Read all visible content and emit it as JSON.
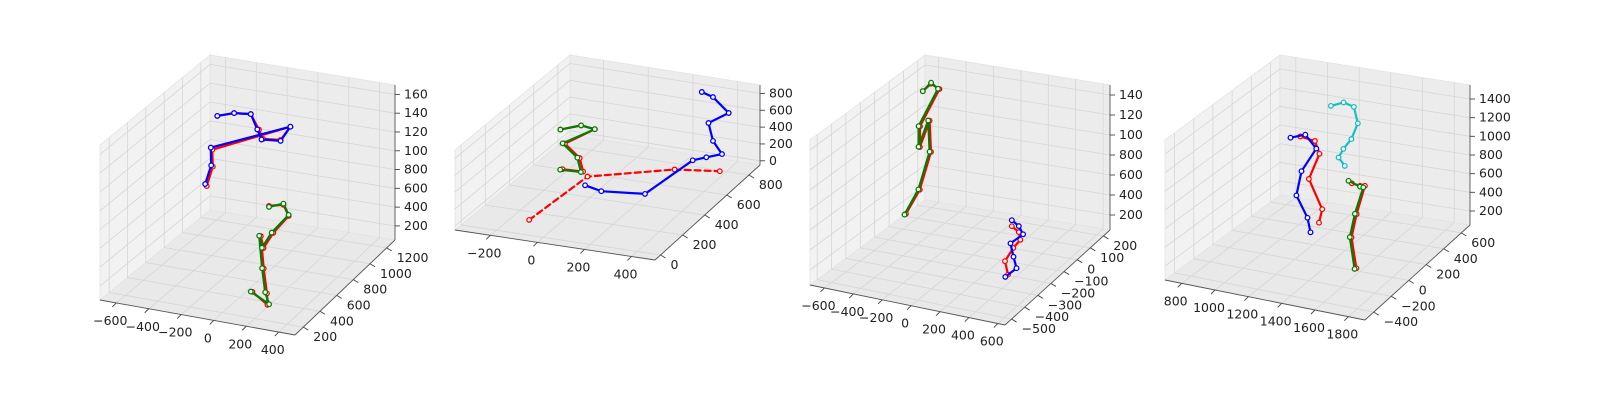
{
  "colors": {
    "red": "#ff0000",
    "blue": "#0000ff",
    "green": "#007f00",
    "cyan": "#19bfbf",
    "tick_text": "#222222"
  },
  "chart_data": [
    {
      "type": "scatter",
      "subtype": "3d-skeleton",
      "title": "",
      "xlabel": "",
      "ylabel": "",
      "zlabel": "",
      "x_ticks": [
        "−600",
        "−400",
        "−200",
        "0",
        "200",
        "400"
      ],
      "y_ticks": [
        "200",
        "400",
        "600",
        "800",
        "1000",
        "1200"
      ],
      "z_ticks": [
        "200",
        "400",
        "600",
        "800",
        "100",
        "120",
        "140",
        "160"
      ],
      "grid": true,
      "series": [
        {
          "color": "red",
          "style": "solid",
          "joint_color": "red",
          "points": [
            [
              -420,
              900,
              1450
            ],
            [
              -330,
              930,
              1480
            ],
            [
              -240,
              960,
              1470
            ],
            [
              -200,
              980,
              1300
            ],
            [
              -190,
              1010,
              1180
            ],
            [
              -100,
              1050,
              1160
            ],
            [
              -60,
              1090,
              1280
            ],
            [
              -440,
              880,
              1100
            ],
            [
              -420,
              850,
              950
            ],
            [
              -430,
              800,
              780
            ]
          ]
        },
        {
          "color": "blue",
          "style": "solid",
          "joint_color": "blue",
          "points": [
            [
              -420,
              900,
              1450
            ],
            [
              -330,
              930,
              1480
            ],
            [
              -240,
              960,
              1470
            ],
            [
              -210,
              980,
              1300
            ],
            [
              -200,
              1010,
              1170
            ],
            [
              -100,
              1050,
              1150
            ],
            [
              -60,
              1090,
              1280
            ],
            [
              -450,
              880,
              1120
            ],
            [
              -430,
              850,
              960
            ],
            [
              -440,
              800,
              800
            ]
          ]
        },
        {
          "color": "red",
          "style": "solid",
          "joint_color": "red",
          "points": [
            [
              20,
              700,
              780
            ],
            [
              100,
              720,
              800
            ],
            [
              150,
              690,
              720
            ],
            [
              80,
              640,
              560
            ],
            [
              40,
              600,
              420
            ],
            [
              120,
              420,
              720
            ],
            [
              160,
              380,
              420
            ],
            [
              190,
              360,
              180
            ],
            [
              210,
              330,
              90
            ],
            [
              100,
              360,
              170
            ]
          ]
        },
        {
          "color": "green",
          "style": "solid",
          "joint_color": "green",
          "points": [
            [
              20,
              700,
              770
            ],
            [
              100,
              720,
              810
            ],
            [
              150,
              690,
              730
            ],
            [
              70,
              640,
              560
            ],
            [
              30,
              600,
              420
            ],
            [
              110,
              420,
              720
            ],
            [
              150,
              380,
              420
            ],
            [
              180,
              360,
              190
            ],
            [
              220,
              330,
              100
            ],
            [
              90,
              360,
              170
            ]
          ]
        }
      ]
    },
    {
      "type": "scatter",
      "subtype": "3d-skeleton",
      "title": "",
      "xlabel": "",
      "ylabel": "",
      "zlabel": "",
      "x_ticks": [
        "−200",
        "0",
        "200",
        "400"
      ],
      "y_ticks": [
        "0",
        "200",
        "400",
        "600",
        "800"
      ],
      "z_ticks": [
        "0",
        "200",
        "400",
        "600",
        "800"
      ],
      "grid": true,
      "series": [
        {
          "color": "red",
          "style": "solid",
          "joint_color": "red",
          "points": [
            [
              -180,
              500,
              560
            ],
            [
              -100,
              520,
              620
            ],
            [
              -40,
              520,
              600
            ],
            [
              -150,
              480,
              430
            ],
            [
              -80,
              470,
              300
            ],
            [
              -60,
              460,
              160
            ],
            [
              -150,
              460,
              150
            ]
          ]
        },
        {
          "color": "green",
          "style": "solid",
          "joint_color": "green",
          "points": [
            [
              -180,
              500,
              560
            ],
            [
              -100,
              520,
              620
            ],
            [
              -40,
              520,
              600
            ],
            [
              -160,
              480,
              430
            ],
            [
              -90,
              470,
              300
            ],
            [
              -70,
              460,
              150
            ],
            [
              -160,
              460,
              140
            ]
          ]
        },
        {
          "color": "red",
          "style": "dashed",
          "joint_color": "red",
          "points": [
            [
              -100,
              80,
              20
            ],
            [
              0,
              380,
              220
            ],
            [
              300,
              540,
              240
            ],
            [
              420,
              700,
              80
            ]
          ]
        },
        {
          "color": "blue",
          "style": "solid",
          "joint_color": "blue",
          "points": [
            [
              280,
              820,
              820
            ],
            [
              330,
              820,
              780
            ],
            [
              400,
              820,
              620
            ],
            [
              330,
              780,
              520
            ],
            [
              380,
              720,
              400
            ],
            [
              420,
              720,
              260
            ],
            [
              360,
              700,
              220
            ],
            [
              300,
              700,
              160
            ],
            [
              250,
              380,
              120
            ],
            [
              120,
              260,
              240
            ],
            [
              50,
              260,
              280
            ]
          ]
        }
      ]
    },
    {
      "type": "scatter",
      "subtype": "3d-skeleton",
      "title": "",
      "xlabel": "",
      "ylabel": "",
      "zlabel": "",
      "x_ticks": [
        "−600",
        "−400",
        "−200",
        "0",
        "200",
        "400",
        "600"
      ],
      "y_ticks": [
        "−500",
        "−400",
        "−300",
        "−200",
        "−100",
        "0",
        "100",
        "200"
      ],
      "z_ticks": [
        "200",
        "400",
        "600",
        "800",
        "100",
        "120",
        "140"
      ],
      "grid": true,
      "series": [
        {
          "color": "red",
          "style": "solid",
          "joint_color": "red",
          "points": [
            [
              -560,
              100,
              1330
            ],
            [
              -500,
              100,
              1420
            ],
            [
              -440,
              100,
              1380
            ],
            [
              -560,
              80,
              1000
            ],
            [
              -540,
              60,
              820
            ],
            [
              -470,
              60,
              1100
            ],
            [
              -460,
              60,
              790
            ],
            [
              -520,
              40,
              420
            ],
            [
              -600,
              20,
              180
            ]
          ]
        },
        {
          "color": "green",
          "style": "solid",
          "joint_color": "green",
          "points": [
            [
              -560,
              100,
              1330
            ],
            [
              -500,
              100,
              1430
            ],
            [
              -450,
              100,
              1380
            ],
            [
              -570,
              80,
              1000
            ],
            [
              -550,
              60,
              820
            ],
            [
              -480,
              60,
              1100
            ],
            [
              -470,
              60,
              790
            ],
            [
              -530,
              40,
              420
            ],
            [
              -610,
              20,
              170
            ]
          ]
        },
        {
          "color": "red",
          "style": "solid",
          "joint_color": "red",
          "points": [
            [
              420,
              -250,
              620
            ],
            [
              460,
              -240,
              560
            ],
            [
              480,
              -250,
              500
            ],
            [
              440,
              -260,
              420
            ],
            [
              400,
              -280,
              300
            ],
            [
              440,
              -300,
              200
            ]
          ]
        },
        {
          "color": "blue",
          "style": "solid",
          "joint_color": "blue",
          "points": [
            [
              420,
              -250,
              680
            ],
            [
              460,
              -240,
              620
            ],
            [
              500,
              -250,
              560
            ],
            [
              420,
              -260,
              460
            ],
            [
              460,
              -280,
              360
            ],
            [
              500,
              -300,
              280
            ],
            [
              440,
              -320,
              200
            ]
          ]
        }
      ]
    },
    {
      "type": "scatter",
      "subtype": "3d-skeleton",
      "title": "",
      "xlabel": "",
      "ylabel": "",
      "zlabel": "",
      "x_ticks": [
        "800",
        "1000",
        "1200",
        "1400",
        "1600",
        "1800"
      ],
      "y_ticks": [
        "−400",
        "−200",
        "0",
        "200",
        "400",
        "600"
      ],
      "z_ticks": [
        "200",
        "400",
        "600",
        "800",
        "1000",
        "1200",
        "1400"
      ],
      "grid": true,
      "series": [
        {
          "color": "red",
          "style": "solid",
          "joint_color": "red",
          "points": [
            [
              1040,
              340,
              1050
            ],
            [
              1120,
              360,
              1010
            ],
            [
              1160,
              340,
              900
            ],
            [
              1100,
              330,
              620
            ],
            [
              1200,
              300,
              350
            ],
            [
              1180,
              300,
              200
            ]
          ]
        },
        {
          "color": "blue",
          "style": "solid",
          "joint_color": "blue",
          "points": [
            [
              980,
              340,
              1020
            ],
            [
              1060,
              360,
              1060
            ],
            [
              1140,
              340,
              950
            ],
            [
              1060,
              320,
              700
            ],
            [
              1040,
              300,
              450
            ],
            [
              1120,
              280,
              250
            ],
            [
              1150,
              260,
              120
            ]
          ]
        },
        {
          "color": "cyan",
          "style": "solid",
          "joint_color": "cyan",
          "points": [
            [
              1150,
              480,
              1300
            ],
            [
              1230,
              480,
              1360
            ],
            [
              1300,
              470,
              1340
            ],
            [
              1330,
              460,
              1180
            ],
            [
              1290,
              460,
              1000
            ],
            [
              1240,
              460,
              880
            ],
            [
              1210,
              460,
              780
            ],
            [
              1260,
              440,
              720
            ]
          ]
        },
        {
          "color": "red",
          "style": "solid",
          "joint_color": "red",
          "points": [
            [
              1660,
              -200,
              1180
            ],
            [
              1700,
              -180,
              1150
            ],
            [
              1740,
              -200,
              1180
            ],
            [
              1700,
              -220,
              880
            ],
            [
              1680,
              -240,
              640
            ],
            [
              1720,
              -260,
              340
            ]
          ]
        },
        {
          "color": "green",
          "style": "solid",
          "joint_color": "green",
          "points": [
            [
              1640,
              -200,
              1200
            ],
            [
              1700,
              -180,
              1140
            ],
            [
              1730,
              -200,
              1160
            ],
            [
              1690,
              -220,
              880
            ],
            [
              1670,
              -240,
              640
            ],
            [
              1710,
              -260,
              330
            ]
          ]
        }
      ]
    }
  ]
}
